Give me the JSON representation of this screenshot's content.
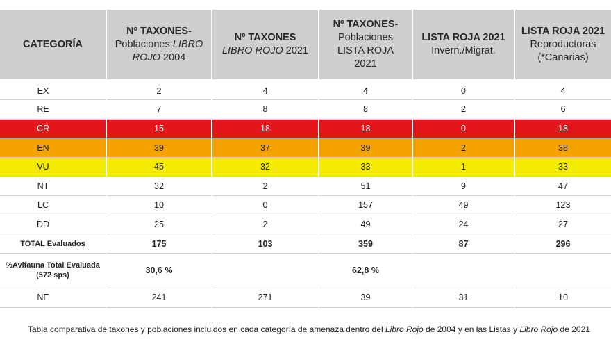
{
  "header": {
    "cat": "CATEGORÍA",
    "h1_a": "Nº TAXONES-",
    "h1_b": "Poblaciones ",
    "h1_c": "LIBRO",
    "h1_d": "ROJO",
    "h1_e": " 2004",
    "h2_a": "Nº TAXONES",
    "h2_b": "LIBRO ROJO",
    "h2_c": " 2021",
    "h3_a": "Nº TAXONES-",
    "h3_b": "Poblaciones",
    "h3_c": "LISTA ROJA",
    "h3_d": "2021",
    "h4_a": "LISTA ROJA 2021",
    "h4_b": "Invern./Migrat.",
    "h5_a": "LISTA ROJA 2021",
    "h5_b": "Reproductoras",
    "h5_c": "(*Canarias)"
  },
  "rows": {
    "ex": [
      "EX",
      "2",
      "4",
      "4",
      "0",
      "4"
    ],
    "re": [
      "RE",
      "7",
      "8",
      "8",
      "2",
      "6"
    ],
    "cr": [
      "CR",
      "15",
      "18",
      "18",
      "0",
      "18"
    ],
    "en": [
      "EN",
      "39",
      "37",
      "39",
      "2",
      "38"
    ],
    "vu": [
      "VU",
      "45",
      "32",
      "33",
      "1",
      "33"
    ],
    "nt": [
      "NT",
      "32",
      "2",
      "51",
      "9",
      "47"
    ],
    "lc": [
      "LC",
      "10",
      "0",
      "157",
      "49",
      "123"
    ],
    "dd": [
      "DD",
      "25",
      "2",
      "49",
      "24",
      "27"
    ],
    "total": [
      "TOTAL Evaluados",
      "175",
      "103",
      "359",
      "87",
      "296"
    ],
    "avi": [
      "%Avifauna Total Evaluada",
      "(572 sps)",
      "30,6 %",
      "",
      "62,8 %",
      "",
      ""
    ],
    "ne": [
      "NE",
      "241",
      "271",
      "39",
      "31",
      "10"
    ]
  },
  "caption": {
    "p1": "Tabla comparativa de taxones y poblaciones incluidos en cada categoría de amenaza dentro del ",
    "p2": "Libro Rojo",
    "p3": " de 2004 y en las Listas y ",
    "p4": "Libro Rojo",
    "p5": " de 2021"
  },
  "colors": {
    "header_bg": "#cfcfcf",
    "cr": "#e3161b",
    "en": "#f4a300",
    "vu": "#f5eb00"
  }
}
